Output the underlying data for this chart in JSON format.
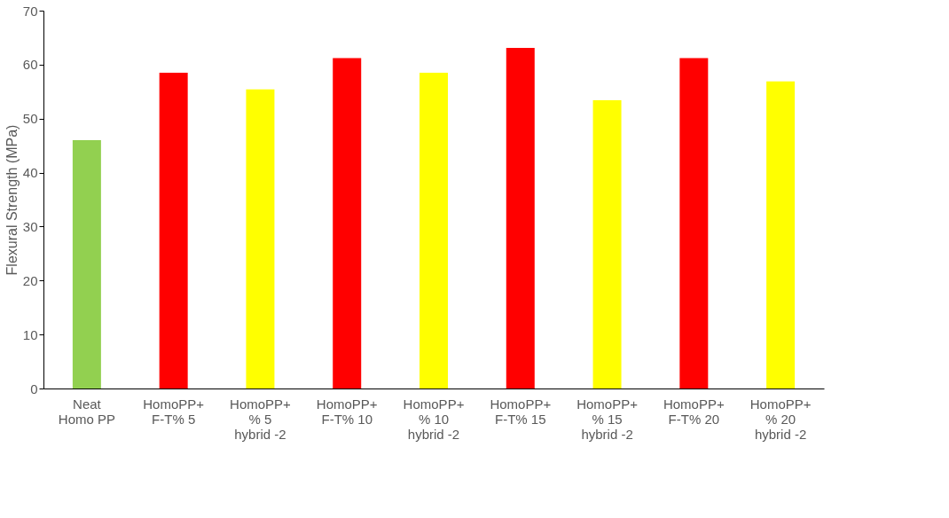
{
  "chart_data": {
    "type": "bar",
    "ylabel": "Flexural Strength (MPa)",
    "categories": [
      "Neat\nHomo PP",
      "HomoPP+\nF-T% 5",
      "HomoPP+\n% 5\nhybrid -2",
      "HomoPP+\nF-T% 10",
      "HomoPP+\n% 10\nhybrid -2",
      "HomoPP+\nF-T% 15",
      "HomoPP+\n% 15\nhybrid -2",
      "HomoPP+\nF-T% 20",
      "HomoPP+\n% 20\nhybrid -2"
    ],
    "values": [
      46.0,
      58.5,
      55.4,
      61.2,
      58.5,
      63.1,
      53.4,
      61.2,
      56.9
    ],
    "colors": [
      "#92d050",
      "#ff0000",
      "#ffff00",
      "#ff0000",
      "#ffff00",
      "#ff0000",
      "#ffff00",
      "#ff0000",
      "#ffff00"
    ],
    "ylim": [
      0,
      70
    ],
    "yticks": [
      0,
      10,
      20,
      30,
      40,
      50,
      60,
      70
    ],
    "grid": false
  }
}
